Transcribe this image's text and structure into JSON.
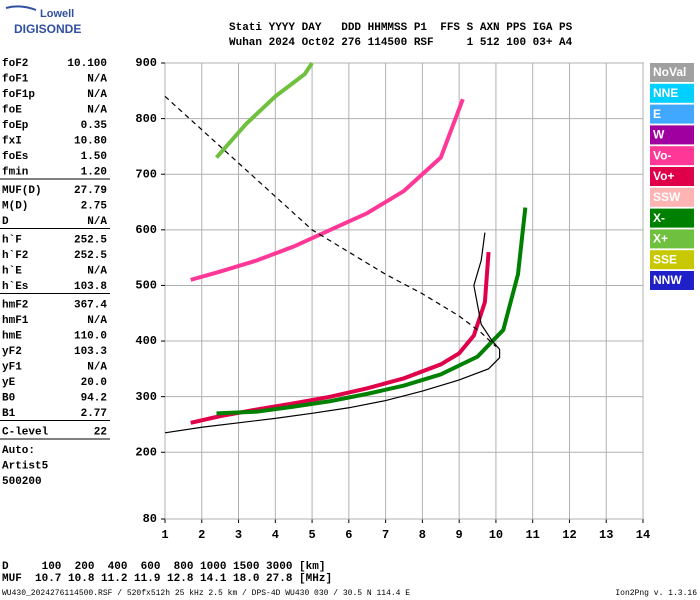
{
  "logo": {
    "top": "Lowell",
    "bottom": "DIGISONDE"
  },
  "header": {
    "line1": "Stati YYYY DAY   DDD HHMMSS P1  FFS S AXN PPS IGA PS",
    "line2": "Wuhan 2024 Oct02 276 114500 RSF     1 512 100 03+ A4"
  },
  "params": [
    [
      [
        "foF2",
        "10.100"
      ],
      [
        "foF1",
        "N/A"
      ],
      [
        "foF1p",
        "N/A"
      ],
      [
        "foE",
        "N/A"
      ],
      [
        "foEp",
        "0.35"
      ],
      [
        "fxI",
        "10.80"
      ],
      [
        "foEs",
        "1.50"
      ],
      [
        "fmin",
        "1.20"
      ]
    ],
    [
      [
        "MUF(D)",
        "27.79"
      ],
      [
        "M(D)",
        "2.75"
      ],
      [
        "D",
        "N/A"
      ]
    ],
    [
      [
        "h`F",
        "252.5"
      ],
      [
        "h`F2",
        "252.5"
      ],
      [
        "h`E",
        "N/A"
      ],
      [
        "h`Es",
        "103.8"
      ]
    ],
    [
      [
        "hmF2",
        "367.4"
      ],
      [
        "hmF1",
        "N/A"
      ],
      [
        "hmE",
        "110.0"
      ],
      [
        "yF2",
        "103.3"
      ],
      [
        "yF1",
        "N/A"
      ],
      [
        "yE",
        "20.0"
      ],
      [
        "B0",
        "94.2"
      ],
      [
        "B1",
        "2.77"
      ]
    ],
    [
      [
        "C-level",
        "22"
      ]
    ],
    [
      [
        "Auto:",
        ""
      ],
      [
        "Artist5",
        ""
      ],
      [
        "500200",
        ""
      ]
    ]
  ],
  "bottom": {
    "d_line": "D     100  200  400  600  800 1000 1500 3000 [km]",
    "muf_line": "MUF  10.7 10.8 11.2 11.9 12.8 14.1 18.0 27.8 [MHz]"
  },
  "footer": {
    "left": "WU430_2024276114500.RSF / 520fx512h 25 kHz 2.5 km / DPS-4D WU430 030 / 30.5 N 114.4 E",
    "right": "Ion2Png v. 1.3.16"
  },
  "chart_data": {
    "type": "line",
    "grid": true,
    "xlim": [
      1,
      14
    ],
    "xticks": [
      1,
      2,
      3,
      4,
      5,
      6,
      7,
      8,
      9,
      10,
      11,
      12,
      13,
      14
    ],
    "ylim": [
      80,
      900
    ],
    "yticks": [
      80,
      200,
      300,
      400,
      500,
      600,
      700,
      800,
      900
    ],
    "series": [
      {
        "name": "NoVal",
        "color": "#a0a0a0",
        "x": [],
        "values": []
      },
      {
        "name": "NNE",
        "color": "#00d0ff",
        "x": [],
        "values": []
      },
      {
        "name": "E",
        "color": "#40a8ff",
        "x": [],
        "values": []
      },
      {
        "name": "W",
        "color": "#a000a0",
        "x": [],
        "values": []
      },
      {
        "name": "Vo-",
        "color": "#ff3898",
        "x": [
          1.7,
          2.5,
          3.5,
          4.5,
          5.5,
          6.5,
          7.5,
          8.5,
          9.1
        ],
        "values": [
          510,
          525,
          545,
          570,
          600,
          630,
          670,
          730,
          835
        ]
      },
      {
        "name": "Vo+",
        "color": "#e0004a",
        "x": [
          1.7,
          2.5,
          3.5,
          4.5,
          5.5,
          6.5,
          7.5,
          8.5,
          9.0,
          9.4,
          9.7,
          9.8
        ],
        "values": [
          253,
          265,
          277,
          288,
          300,
          315,
          333,
          358,
          378,
          410,
          470,
          560
        ]
      },
      {
        "name": "SSW",
        "color": "#ffb4b4",
        "x": [],
        "values": []
      },
      {
        "name": "X-",
        "color": "#008000",
        "x": [
          2.4,
          3.5,
          4.5,
          5.5,
          6.5,
          7.5,
          8.5,
          9.5,
          10.2,
          10.6,
          10.8
        ],
        "values": [
          270,
          273,
          282,
          292,
          305,
          320,
          340,
          372,
          420,
          520,
          640
        ]
      },
      {
        "name": "X+",
        "color": "#70c040",
        "x": [
          2.4,
          3.2,
          4.0,
          4.8,
          5.0
        ],
        "values": [
          730,
          790,
          840,
          880,
          900
        ]
      },
      {
        "name": "SSE",
        "color": "#c8c800",
        "x": [],
        "values": []
      },
      {
        "name": "NNW",
        "color": "#2020c8",
        "x": [],
        "values": []
      },
      {
        "color": "#000000",
        "style": "solid",
        "x": [
          1,
          2,
          3,
          4,
          5,
          6,
          7,
          8,
          9,
          9.8,
          10.1,
          10.1,
          9.9,
          9.6,
          9.4,
          9.6,
          9.7
        ],
        "values": [
          235,
          245,
          253,
          261,
          270,
          280,
          293,
          310,
          330,
          350,
          370,
          385,
          400,
          430,
          500,
          545,
          595
        ]
      },
      {
        "color": "#000000",
        "style": "dashed",
        "x": [
          1,
          2,
          3,
          4,
          5,
          6,
          7,
          8,
          9,
          9.6,
          10
        ],
        "values": [
          840,
          780,
          720,
          660,
          600,
          560,
          520,
          485,
          445,
          415,
          390
        ]
      }
    ]
  }
}
